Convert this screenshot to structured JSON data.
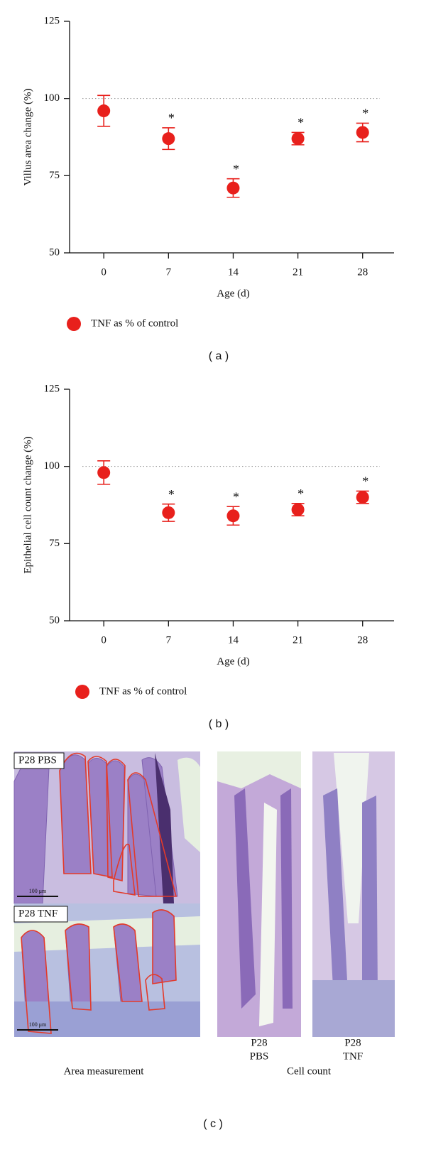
{
  "chart_data": [
    {
      "type": "scatter",
      "panel_label": "( a )",
      "y_label": "Villus area change (%)",
      "x_label": "Age (d)",
      "x": [
        0,
        7,
        14,
        21,
        28
      ],
      "series": [
        {
          "name": "TNF as % of control",
          "color": "#e8201c",
          "values": [
            96,
            87,
            71,
            87,
            89
          ],
          "errors": [
            5,
            3.5,
            3,
            2,
            3
          ]
        }
      ],
      "xlim": [
        -3.7,
        31.4
      ],
      "xticks": [
        0,
        7,
        14,
        21,
        28
      ],
      "ylim": [
        50,
        125
      ],
      "yticks": [
        50,
        75,
        100,
        125
      ],
      "reference_line": 100,
      "annotations": [
        {
          "x": 7,
          "text": "*"
        },
        {
          "x": 14,
          "text": "*"
        },
        {
          "x": 21,
          "text": "*"
        },
        {
          "x": 28,
          "text": "*"
        }
      ]
    },
    {
      "type": "scatter",
      "panel_label": "( b )",
      "y_label": "Epithelial cell count change (%)",
      "x_label": "Age (d)",
      "x": [
        0,
        7,
        14,
        21,
        28
      ],
      "series": [
        {
          "name": "TNF as % of control",
          "color": "#e8201c",
          "values": [
            98,
            85,
            84,
            86,
            90
          ],
          "errors": [
            3.8,
            2.8,
            3,
            2,
            2
          ]
        }
      ],
      "xlim": [
        -3.7,
        31.4
      ],
      "xticks": [
        0,
        7,
        14,
        21,
        28
      ],
      "ylim": [
        50,
        125
      ],
      "yticks": [
        50,
        75,
        100,
        125
      ],
      "reference_line": 100,
      "annotations": [
        {
          "x": 7,
          "text": "*"
        },
        {
          "x": 14,
          "text": "*"
        },
        {
          "x": 21,
          "text": "*"
        },
        {
          "x": 28,
          "text": "*"
        }
      ]
    }
  ],
  "panel_c": {
    "label": "( c )",
    "area_measurement": {
      "caption": "Area measurement",
      "insets": [
        "P28 PBS",
        "P28 TNF"
      ],
      "scale_bars": [
        "100 μm",
        "100 μm"
      ]
    },
    "cell_count": {
      "caption": "Cell count",
      "images": [
        [
          "P28",
          "PBS"
        ],
        [
          "P28",
          "TNF"
        ]
      ]
    }
  }
}
